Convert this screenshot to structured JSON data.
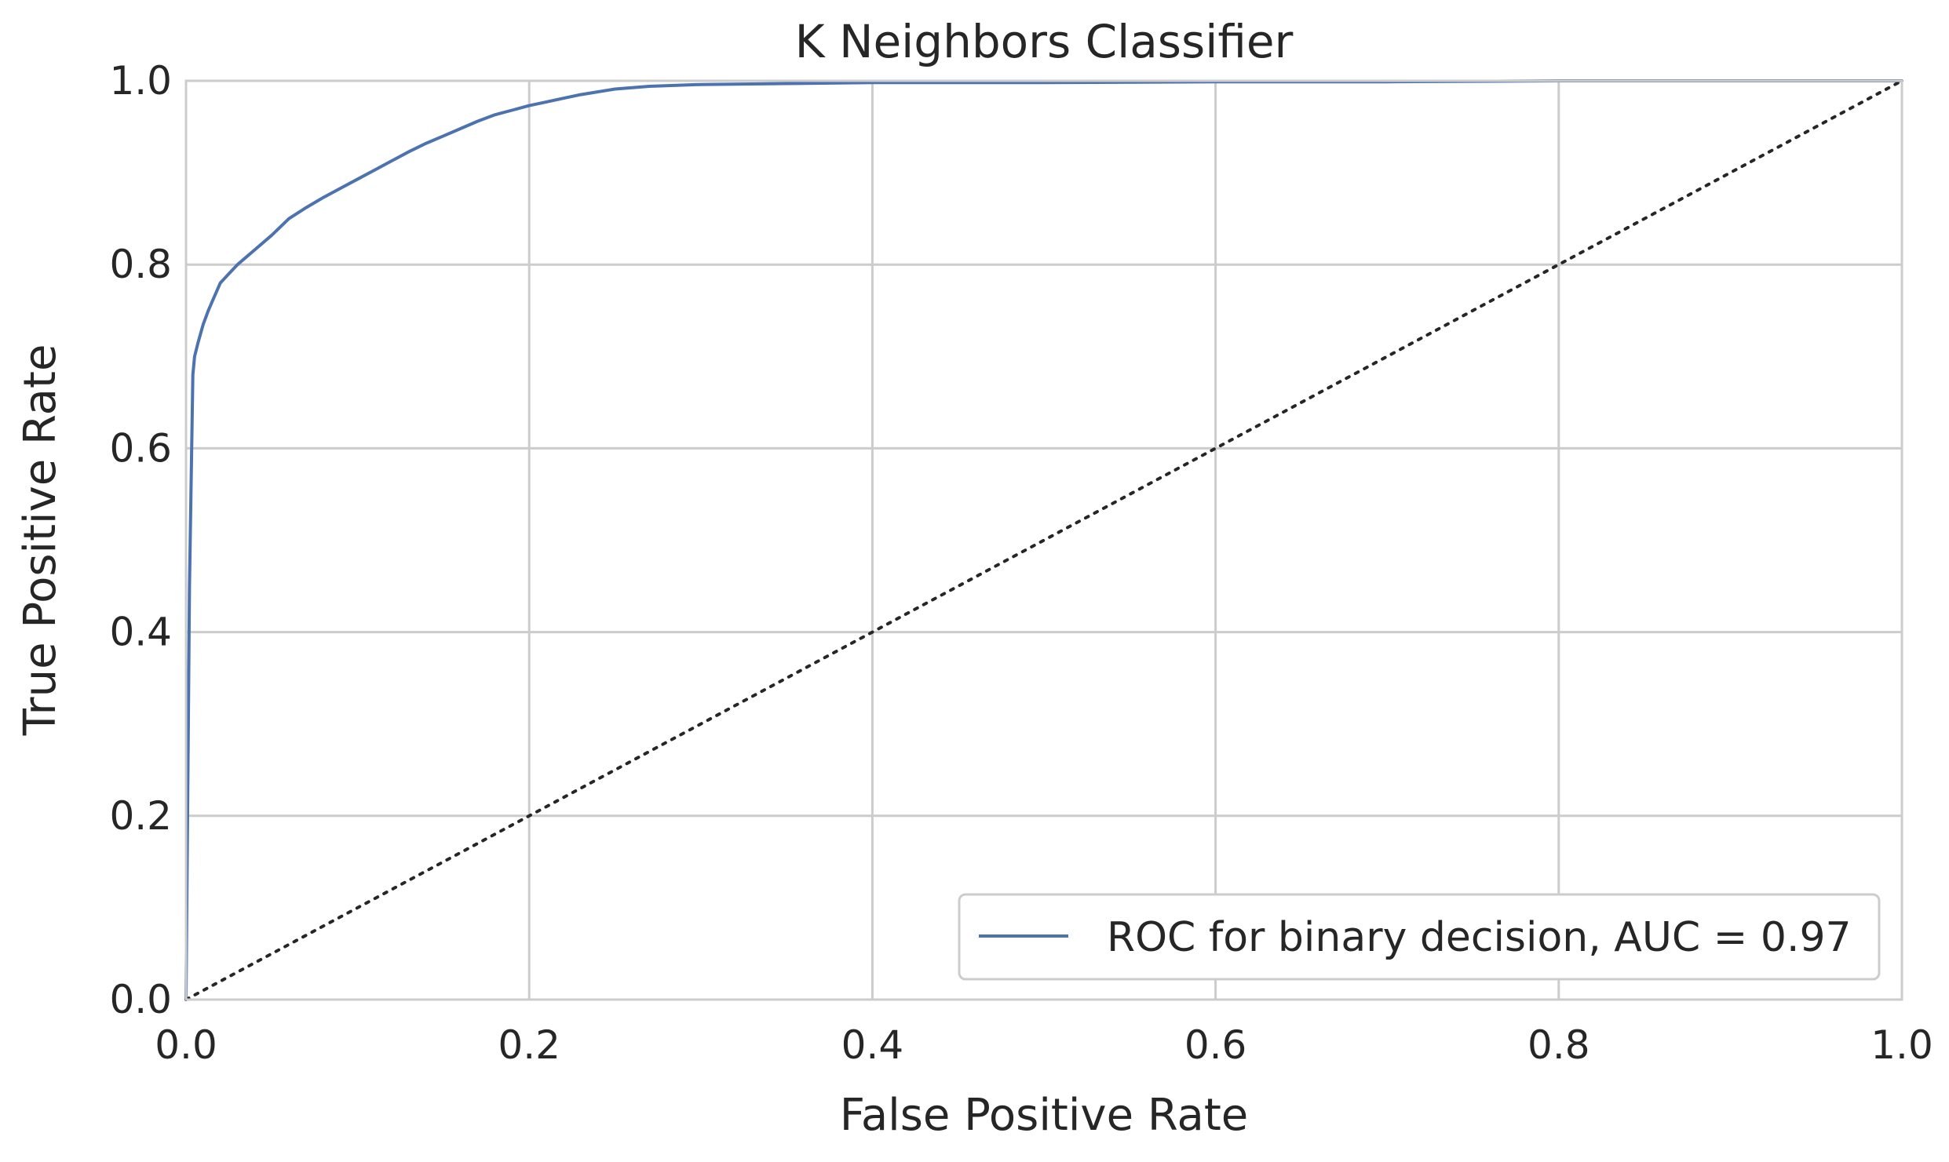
{
  "chart_data": {
    "type": "line",
    "title": "K Neighbors Classifier",
    "xlabel": "False Positive Rate",
    "ylabel": "True Positive Rate",
    "xlim": [
      0.0,
      1.0
    ],
    "ylim": [
      0.0,
      1.0
    ],
    "xticks": [
      "0.0",
      "0.2",
      "0.4",
      "0.6",
      "0.8",
      "1.0"
    ],
    "yticks": [
      "0.0",
      "0.2",
      "0.4",
      "0.6",
      "0.8",
      "1.0"
    ],
    "grid": true,
    "legend_position": "lower-right",
    "series": [
      {
        "name": "ROC for binary decision, AUC = 0.97",
        "color": "#4c72b0",
        "style": "solid",
        "x": [
          0.0,
          0.002,
          0.004,
          0.005,
          0.007,
          0.01,
          0.013,
          0.016,
          0.02,
          0.025,
          0.03,
          0.04,
          0.05,
          0.06,
          0.07,
          0.08,
          0.09,
          0.1,
          0.11,
          0.12,
          0.13,
          0.14,
          0.15,
          0.16,
          0.17,
          0.18,
          0.19,
          0.2,
          0.21,
          0.22,
          0.23,
          0.25,
          0.27,
          0.3,
          0.35,
          0.4,
          0.5,
          0.6,
          0.7,
          0.8,
          0.9,
          1.0
        ],
        "y": [
          0.0,
          0.45,
          0.68,
          0.7,
          0.715,
          0.735,
          0.75,
          0.763,
          0.78,
          0.79,
          0.8,
          0.816,
          0.832,
          0.85,
          0.862,
          0.873,
          0.883,
          0.893,
          0.903,
          0.913,
          0.923,
          0.932,
          0.94,
          0.948,
          0.956,
          0.963,
          0.968,
          0.973,
          0.977,
          0.981,
          0.985,
          0.991,
          0.994,
          0.996,
          0.997,
          0.998,
          0.998,
          0.999,
          0.999,
          1.0,
          1.0,
          1.0
        ]
      },
      {
        "color": "#262626",
        "style": "dotted",
        "x": [
          0.0,
          1.0
        ],
        "y": [
          0.0,
          1.0
        ]
      }
    ]
  }
}
